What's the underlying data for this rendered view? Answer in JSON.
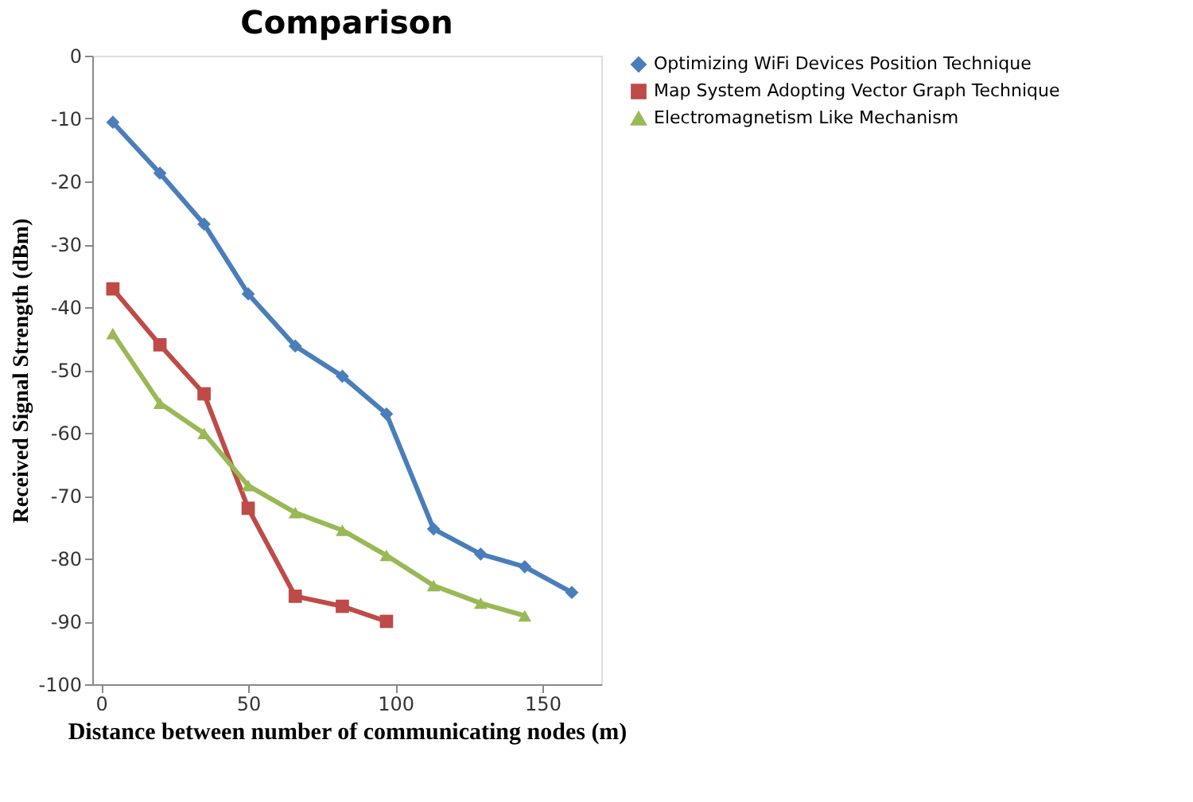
{
  "chart_data": {
    "type": "line",
    "title": "Comparison",
    "xlabel": "Distance between number  of communicating  nodes (m)",
    "ylabel": "Received Signal Strength (dBm)",
    "xlim": [
      -3,
      170
    ],
    "xticks": [
      0,
      50,
      100,
      150
    ],
    "ylim": [
      -100,
      0
    ],
    "yticks": [
      0,
      -10,
      -20,
      -30,
      -40,
      -50,
      -60,
      -70,
      -80,
      -90,
      -100
    ],
    "grid": false,
    "legend": "right",
    "line_style": "solid",
    "series": [
      {
        "name": "Optimizing WiFi Devices Position Technique",
        "color": "#4a7ebb",
        "marker": "diamond",
        "x": [
          4,
          20,
          35,
          50,
          66,
          82,
          97,
          113,
          129,
          144,
          160
        ],
        "values": [
          -10.6,
          -18.7,
          -26.8,
          -37.9,
          -46.2,
          -51,
          -57,
          -75.3,
          -79.3,
          -81.3,
          -85.4
        ]
      },
      {
        "name": "Map System Adopting Vector Graph Technique",
        "color": "#be4b48",
        "marker": "square",
        "x": [
          4,
          20,
          35,
          50,
          66,
          82,
          97
        ],
        "values": [
          -37.1,
          -46,
          -53.8,
          -72,
          -86,
          -87.6,
          -90
        ]
      },
      {
        "name": "Electromagnetism Like Mechanism",
        "color": "#98b954",
        "marker": "triangle",
        "x": [
          4,
          20,
          35,
          50,
          66,
          82,
          97,
          113,
          129,
          144
        ],
        "values": [
          -44.2,
          -55.3,
          -60.1,
          -68.4,
          -72.7,
          -75.5,
          -79.5,
          -84.3,
          -87.1,
          -89.1
        ]
      }
    ]
  }
}
